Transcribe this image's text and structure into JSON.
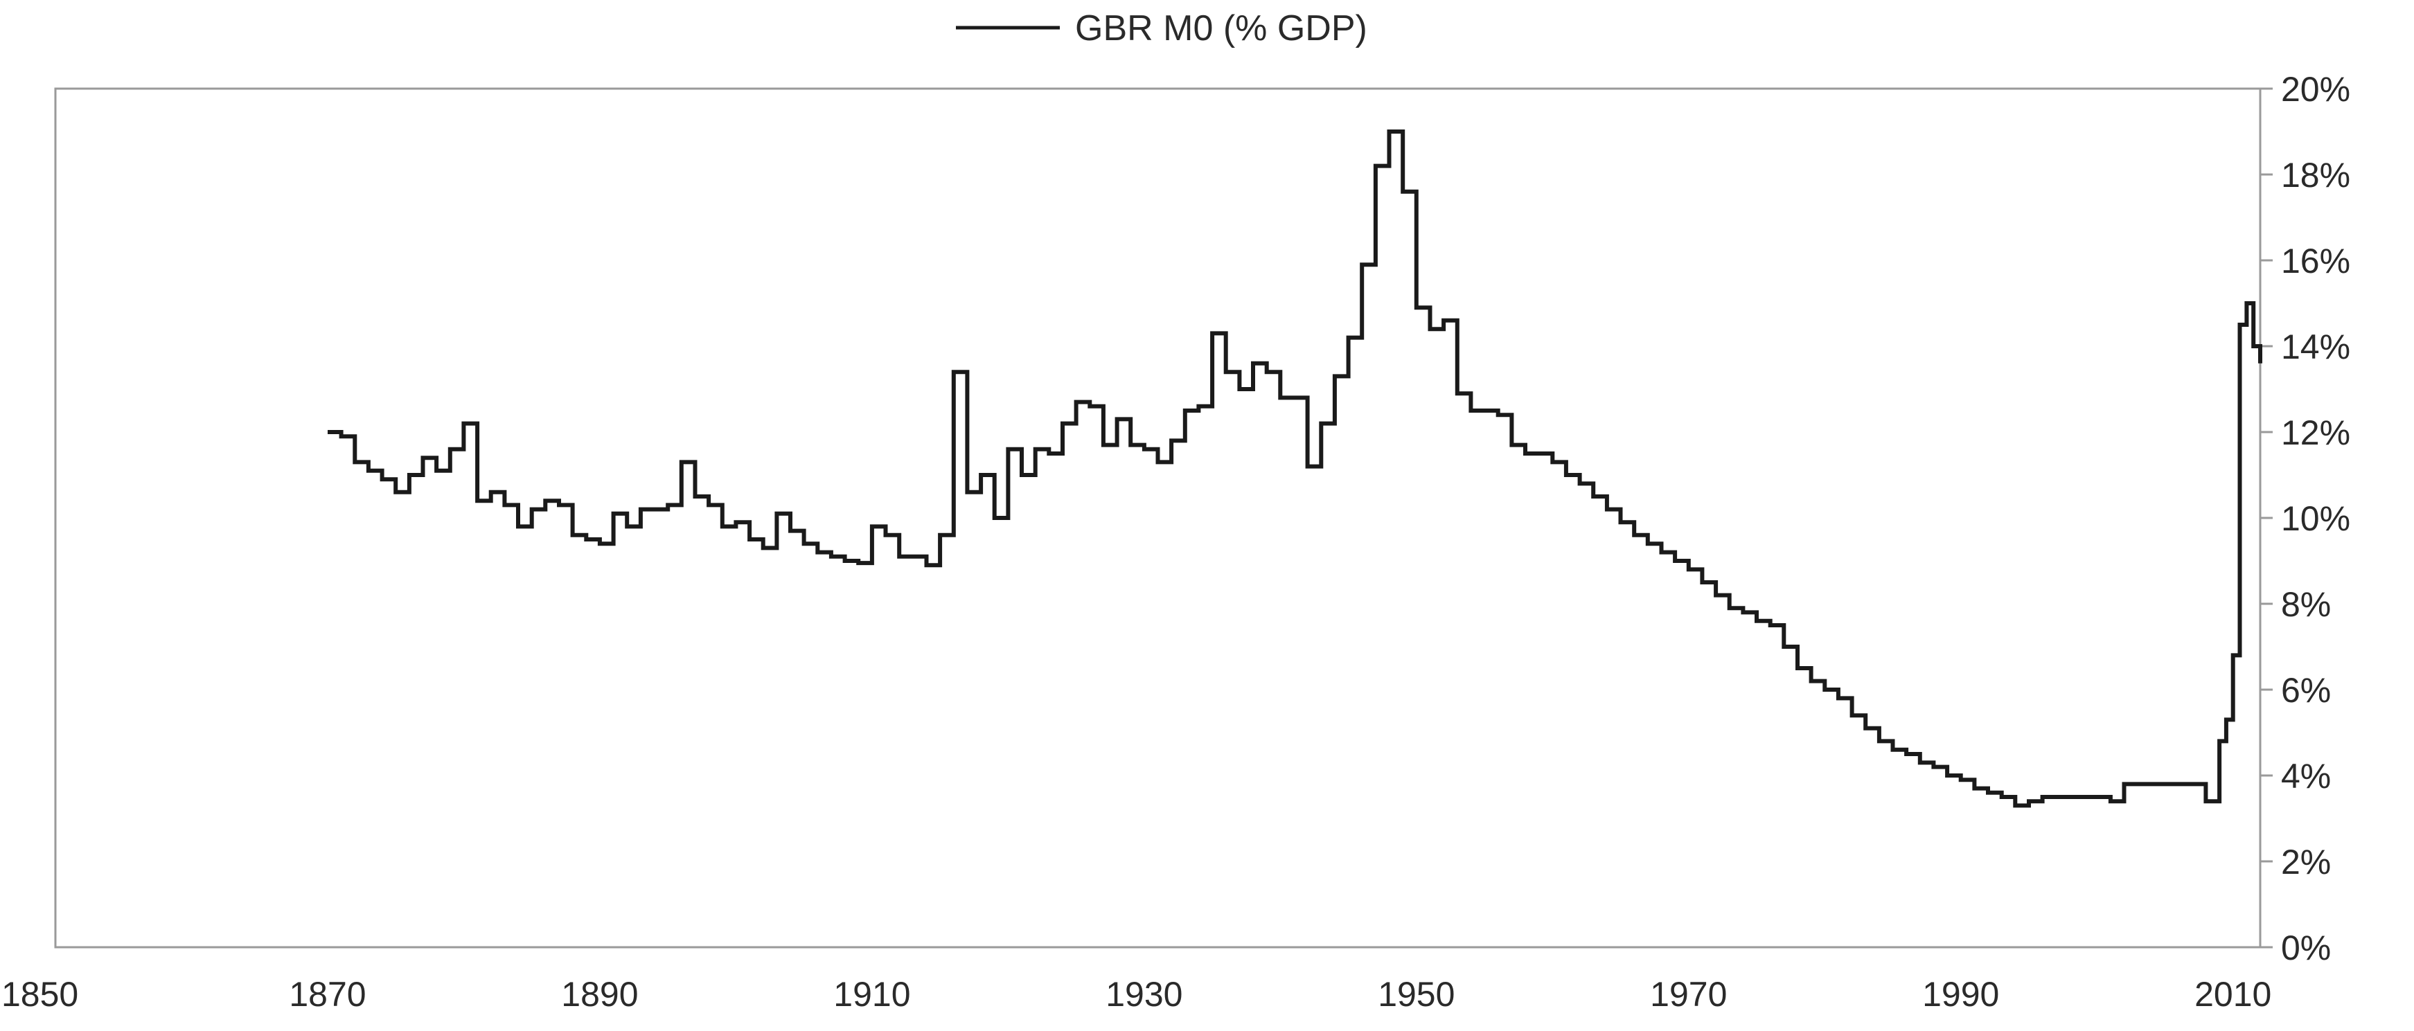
{
  "chart_data": {
    "type": "line",
    "title": "",
    "xlabel": "",
    "ylabel": "",
    "xlim": [
      1850,
      2012
    ],
    "ylim": [
      0,
      20
    ],
    "x_ticks": [
      "1850",
      "1870",
      "1890",
      "1910",
      "1930",
      "1950",
      "1970",
      "1990",
      "2010"
    ],
    "y_ticks": [
      "0%",
      "2%",
      "4%",
      "6%",
      "8%",
      "10%",
      "12%",
      "14%",
      "16%",
      "18%",
      "20%"
    ],
    "y_axis_position": "right",
    "grid": false,
    "legend": {
      "position": "top-center",
      "entries": [
        "GBR M0 (% GDP)"
      ]
    },
    "line_color": "#1a1a1a",
    "series": [
      {
        "name": "GBR M0 (% GDP)",
        "step": true,
        "points": [
          [
            1870,
            12.0
          ],
          [
            1871,
            11.9
          ],
          [
            1872,
            11.3
          ],
          [
            1873,
            11.1
          ],
          [
            1874,
            10.9
          ],
          [
            1875,
            10.6
          ],
          [
            1876,
            11.0
          ],
          [
            1877,
            11.4
          ],
          [
            1878,
            11.1
          ],
          [
            1879,
            11.6
          ],
          [
            1880,
            12.2
          ],
          [
            1881,
            10.4
          ],
          [
            1882,
            10.6
          ],
          [
            1883,
            10.3
          ],
          [
            1884,
            9.8
          ],
          [
            1885,
            10.2
          ],
          [
            1886,
            10.4
          ],
          [
            1887,
            10.3
          ],
          [
            1888,
            9.6
          ],
          [
            1889,
            9.5
          ],
          [
            1890,
            9.4
          ],
          [
            1891,
            10.1
          ],
          [
            1892,
            9.8
          ],
          [
            1893,
            10.2
          ],
          [
            1894,
            10.2
          ],
          [
            1895,
            10.3
          ],
          [
            1896,
            11.3
          ],
          [
            1897,
            10.5
          ],
          [
            1898,
            10.3
          ],
          [
            1899,
            9.8
          ],
          [
            1900,
            9.9
          ],
          [
            1901,
            9.5
          ],
          [
            1902,
            9.3
          ],
          [
            1903,
            10.1
          ],
          [
            1904,
            9.7
          ],
          [
            1905,
            9.4
          ],
          [
            1906,
            9.2
          ],
          [
            1907,
            9.1
          ],
          [
            1908,
            9.0
          ],
          [
            1909,
            8.95
          ],
          [
            1910,
            9.8
          ],
          [
            1911,
            9.6
          ],
          [
            1912,
            9.1
          ],
          [
            1913,
            9.1
          ],
          [
            1914,
            8.9
          ],
          [
            1915,
            9.6
          ],
          [
            1916,
            13.4
          ],
          [
            1917,
            10.6
          ],
          [
            1918,
            11.0
          ],
          [
            1919,
            10.0
          ],
          [
            1920,
            11.6
          ],
          [
            1921,
            11.0
          ],
          [
            1922,
            11.6
          ],
          [
            1923,
            11.5
          ],
          [
            1924,
            12.2
          ],
          [
            1925,
            12.7
          ],
          [
            1926,
            12.6
          ],
          [
            1927,
            11.7
          ],
          [
            1928,
            12.3
          ],
          [
            1929,
            11.7
          ],
          [
            1930,
            11.6
          ],
          [
            1931,
            11.3
          ],
          [
            1932,
            11.8
          ],
          [
            1933,
            12.5
          ],
          [
            1934,
            12.6
          ],
          [
            1935,
            14.3
          ],
          [
            1936,
            13.4
          ],
          [
            1937,
            13.0
          ],
          [
            1938,
            13.6
          ],
          [
            1939,
            13.4
          ],
          [
            1940,
            12.8
          ],
          [
            1941,
            12.8
          ],
          [
            1942,
            11.2
          ],
          [
            1943,
            12.2
          ],
          [
            1944,
            13.3
          ],
          [
            1945,
            14.2
          ],
          [
            1946,
            15.9
          ],
          [
            1947,
            18.2
          ],
          [
            1948,
            19.0
          ],
          [
            1949,
            17.6
          ],
          [
            1950,
            14.9
          ],
          [
            1951,
            14.4
          ],
          [
            1952,
            14.6
          ],
          [
            1953,
            12.9
          ],
          [
            1954,
            12.5
          ],
          [
            1955,
            12.5
          ],
          [
            1956,
            12.4
          ],
          [
            1957,
            11.7
          ],
          [
            1958,
            11.5
          ],
          [
            1959,
            11.5
          ],
          [
            1960,
            11.3
          ],
          [
            1961,
            11.0
          ],
          [
            1962,
            10.8
          ],
          [
            1963,
            10.5
          ],
          [
            1964,
            10.2
          ],
          [
            1965,
            9.9
          ],
          [
            1966,
            9.6
          ],
          [
            1967,
            9.4
          ],
          [
            1968,
            9.2
          ],
          [
            1969,
            9.0
          ],
          [
            1970,
            8.8
          ],
          [
            1971,
            8.5
          ],
          [
            1972,
            8.2
          ],
          [
            1973,
            7.9
          ],
          [
            1974,
            7.8
          ],
          [
            1975,
            7.6
          ],
          [
            1976,
            7.5
          ],
          [
            1977,
            7.0
          ],
          [
            1978,
            6.5
          ],
          [
            1979,
            6.2
          ],
          [
            1980,
            6.0
          ],
          [
            1981,
            5.8
          ],
          [
            1982,
            5.4
          ],
          [
            1983,
            5.1
          ],
          [
            1984,
            4.8
          ],
          [
            1985,
            4.6
          ],
          [
            1986,
            4.5
          ],
          [
            1987,
            4.3
          ],
          [
            1988,
            4.2
          ],
          [
            1989,
            4.0
          ],
          [
            1990,
            3.9
          ],
          [
            1991,
            3.7
          ],
          [
            1992,
            3.6
          ],
          [
            1993,
            3.5
          ],
          [
            1994,
            3.3
          ],
          [
            1995,
            3.4
          ],
          [
            1996,
            3.5
          ],
          [
            1997,
            3.5
          ],
          [
            1998,
            3.5
          ],
          [
            1999,
            3.5
          ],
          [
            2000,
            3.5
          ],
          [
            2001,
            3.4
          ],
          [
            2002,
            3.8
          ],
          [
            2003,
            3.8
          ],
          [
            2004,
            3.8
          ],
          [
            2005,
            3.8
          ],
          [
            2006,
            3.8
          ],
          [
            2007,
            3.8
          ],
          [
            2008,
            3.4
          ],
          [
            2009,
            4.8
          ],
          [
            2009.5,
            5.3
          ],
          [
            2010,
            6.8
          ],
          [
            2010.5,
            14.5
          ],
          [
            2011,
            15.0
          ],
          [
            2011.5,
            14.0
          ],
          [
            2012,
            13.6
          ]
        ]
      }
    ]
  }
}
